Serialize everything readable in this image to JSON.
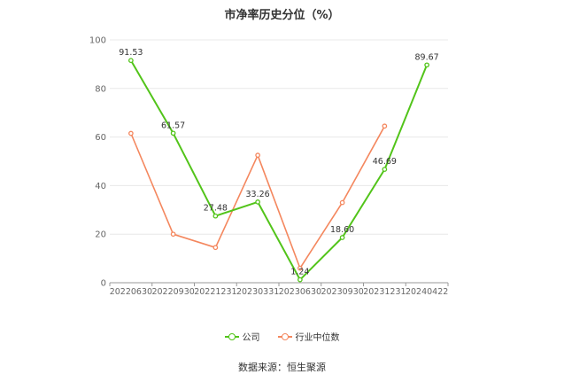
{
  "chart_data": {
    "type": "line",
    "title": "市净率历史分位（%）",
    "categories": [
      "20220630",
      "20220930",
      "20221231",
      "20230331",
      "20230630",
      "20230930",
      "20231231",
      "20240422"
    ],
    "ylim": [
      0,
      100
    ],
    "yticks": [
      0,
      20,
      40,
      60,
      80,
      100
    ],
    "grid": true,
    "legend_position": "bottom-center",
    "series": [
      {
        "name": "公司",
        "color": "#52c41a",
        "values": [
          91.53,
          61.57,
          27.48,
          33.26,
          1.24,
          18.6,
          46.69,
          89.67
        ],
        "labels": [
          "91.53",
          "61.57",
          "27.48",
          "33.26",
          "1.24",
          "18.60",
          "46.69",
          "89.67"
        ]
      },
      {
        "name": "行业中位数",
        "color": "#f4875e",
        "values": [
          61.5,
          20.0,
          14.5,
          52.5,
          6.0,
          33.0,
          64.5,
          null
        ]
      }
    ],
    "source": "数据来源：恒生聚源"
  }
}
